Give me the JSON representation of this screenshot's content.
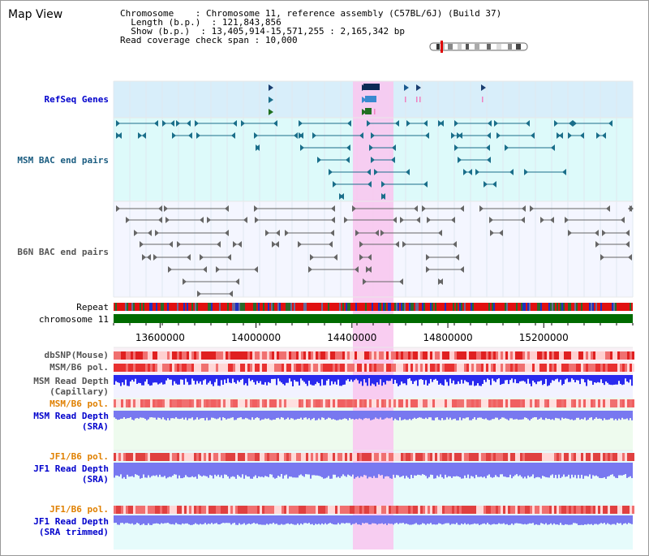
{
  "title": "Map View",
  "info": {
    "chromosome_label": "Chromosome",
    "chromosome_value": "Chromosome 11, reference assembly (C57BL/6J) (Build 37)",
    "length_label": "Length (b.p.)",
    "length_value": "121,843,856",
    "show_label": "Show (b.p.)",
    "show_value": "13,405,914-15,571,255 : 2,165,342 bp",
    "coverage_label": "Read coverage check span",
    "coverage_value": "10,000"
  },
  "tracks": {
    "refseq": "RefSeq Genes",
    "msm_bac": "MSM BAC end pairs",
    "b6n_bac": "B6N BAC end pairs",
    "repeat": "Repeat",
    "chromosome": "chromosome 11",
    "dbsnp": "dbSNP(Mouse)",
    "msm_b6_pol_1": "MSM/B6 pol.",
    "msm_read_depth_cap": "MSM Read Depth\n(Capillary)",
    "msm_b6_pol_2": "MSM/B6 pol.",
    "msm_read_depth_sra": "MSM Read Depth\n(SRA)",
    "jf1_b6_pol_1": "JF1/B6 pol.",
    "jf1_read_depth_sra": "JF1 Read Depth\n(SRA)",
    "jf1_b6_pol_2": "JF1/B6 pol.",
    "jf1_read_depth_trimmed": "JF1 Read Depth\n(SRA trimmed)"
  },
  "axis": {
    "ticks": [
      "13600000",
      "14000000",
      "14400000",
      "14800000",
      "15200000"
    ],
    "tick_values": [
      13600000,
      14000000,
      14400000,
      14800000,
      15200000
    ],
    "start": 13405914,
    "end": 15571255
  },
  "highlight": {
    "start": 14370000,
    "end": 14540000
  },
  "colors": {
    "refseq_bg": "#d8eefa",
    "msm_bg": "#ddfafa",
    "b6n_bg": "#f4f6ff",
    "highlight": "#f8c8f0",
    "msm_feature": "#1a6e8a",
    "b6n_feature": "#666666",
    "chromosome_bar": "#006b00",
    "depth_blue": "#2a2aee",
    "depth_light": "#7878f0"
  }
}
